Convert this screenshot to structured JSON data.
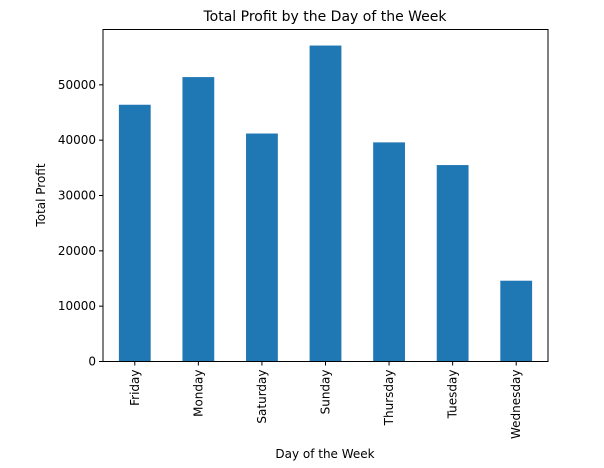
{
  "chart_data": {
    "type": "bar",
    "title": "Total Profit by the Day of the Week",
    "xlabel": "Day of the Week",
    "ylabel": "Total Profit",
    "categories": [
      "Friday",
      "Monday",
      "Saturday",
      "Sunday",
      "Thursday",
      "Tuesday",
      "Wednesday"
    ],
    "values": [
      46400,
      51400,
      41200,
      57100,
      39600,
      35500,
      14600
    ],
    "ylim": [
      0,
      60000
    ],
    "yticks": [
      0,
      10000,
      20000,
      30000,
      40000,
      50000
    ],
    "grid": false,
    "legend": "none",
    "bar_color": "#1f77b4"
  }
}
